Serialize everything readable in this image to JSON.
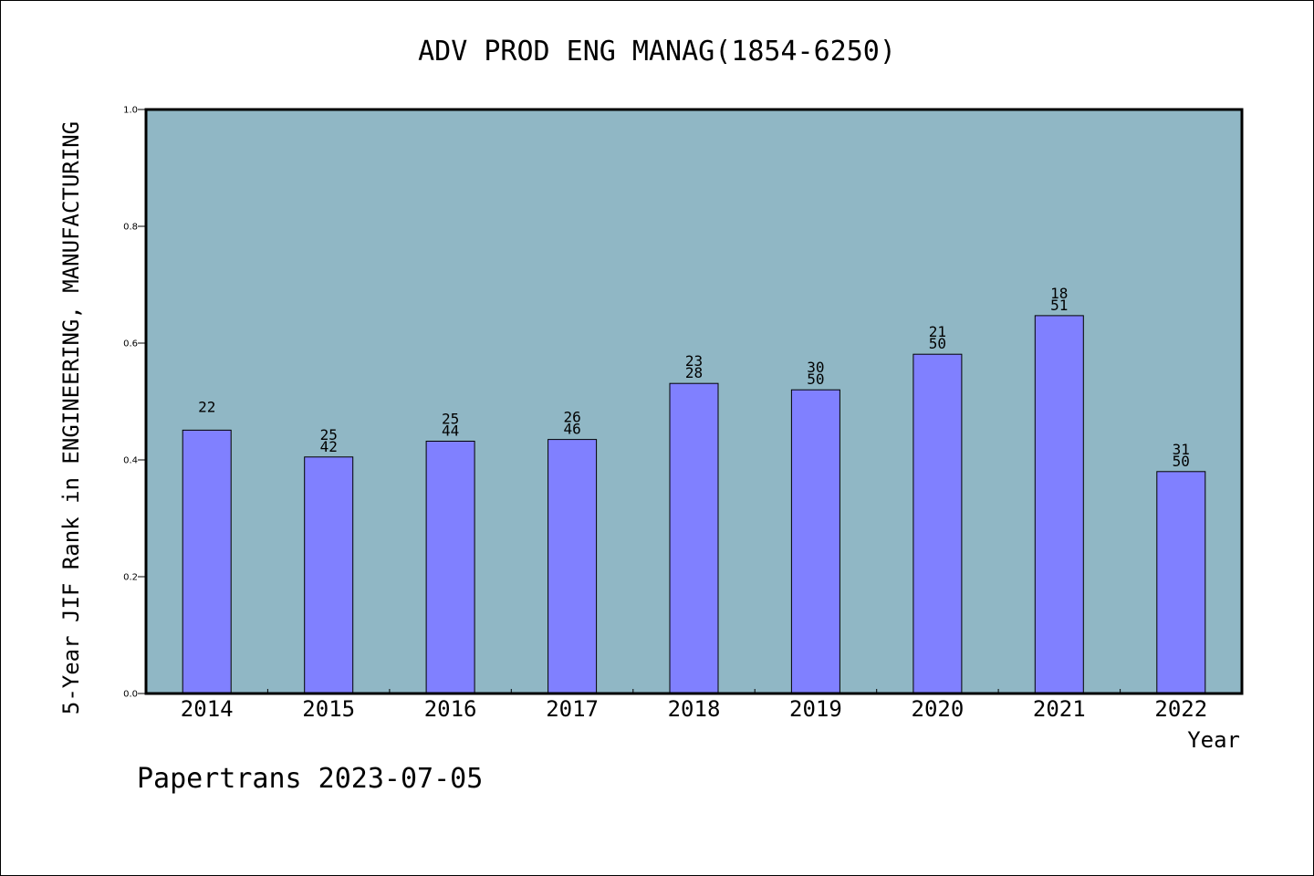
{
  "chart_data": {
    "type": "bar",
    "title": "ADV PROD ENG MANAG(1854-6250)",
    "xlabel": "Year",
    "ylabel": "5-Year JIF Rank in ENGINEERING, MANUFACTURING",
    "ylim": [
      0,
      1.0
    ],
    "yticks": [
      "0.0",
      "0.2",
      "0.4",
      "0.6",
      "0.8",
      "1.0"
    ],
    "categories": [
      "2014",
      "2015",
      "2016",
      "2017",
      "2018",
      "2019",
      "2020",
      "2021",
      "2022"
    ],
    "values": [
      0.451,
      0.405,
      0.432,
      0.435,
      0.531,
      0.52,
      0.581,
      0.647,
      0.38
    ],
    "bar_labels": [
      [
        "22"
      ],
      [
        "25",
        "42"
      ],
      [
        "25",
        "44"
      ],
      [
        "26",
        "46"
      ],
      [
        "23",
        "28"
      ],
      [
        "30",
        "50"
      ],
      [
        "21",
        "50"
      ],
      [
        "18",
        "51"
      ],
      [
        "31",
        "50"
      ]
    ],
    "grid": false,
    "colors": {
      "plot_background": "#90b7c5",
      "bar_fill": "#8080ff",
      "bar_stroke": "#000000"
    }
  },
  "footer": "Papertrans 2023-07-05"
}
